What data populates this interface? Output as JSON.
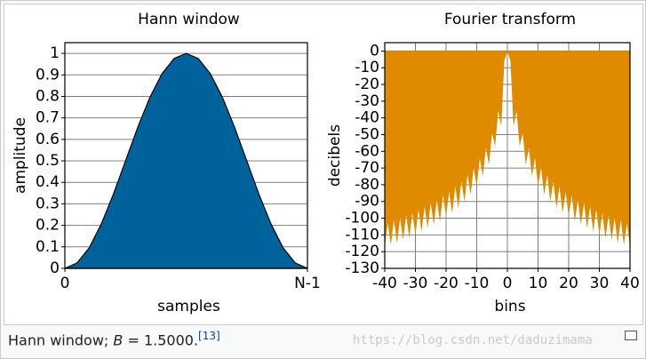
{
  "chart_data": [
    {
      "type": "area",
      "title": "Hann window",
      "x_label": "samples",
      "y_label": "amplitude",
      "x": [
        0,
        0.05,
        0.1,
        0.15,
        0.2,
        0.25,
        0.3,
        0.35,
        0.4,
        0.45,
        0.5,
        0.55,
        0.6,
        0.65,
        0.7,
        0.75,
        0.8,
        0.85,
        0.9,
        0.95,
        1
      ],
      "values": [
        0,
        0.025,
        0.095,
        0.206,
        0.345,
        0.5,
        0.655,
        0.794,
        0.905,
        0.976,
        1,
        0.976,
        0.905,
        0.794,
        0.655,
        0.5,
        0.345,
        0.206,
        0.095,
        0.025,
        0
      ],
      "color": "#00629b",
      "stroke": "#000000",
      "xlim": [
        0,
        1
      ],
      "xticks": [
        {
          "value": 0,
          "label": "0"
        },
        {
          "value": 1,
          "label": "N-1"
        }
      ],
      "ylim": [
        0,
        1.05
      ],
      "yticks": [
        0,
        0.1,
        0.2,
        0.3,
        0.4,
        0.5,
        0.6,
        0.7,
        0.8,
        0.9,
        1
      ],
      "grid": true,
      "xgrid": false
    },
    {
      "type": "area",
      "title": "Fourier transform",
      "x_label": "bins",
      "y_label": "decibels",
      "x": [
        -40,
        -39,
        -38,
        -37,
        -36,
        -35,
        -34,
        -33,
        -32,
        -31,
        -30,
        -29,
        -28,
        -27,
        -26,
        -25,
        -24,
        -23,
        -22,
        -21,
        -20,
        -19,
        -18,
        -17,
        -16,
        -15,
        -14,
        -13,
        -12,
        -11,
        -10,
        -9,
        -8,
        -7,
        -6,
        -5,
        -4,
        -3,
        -2,
        -1,
        0,
        1,
        2,
        3,
        4,
        5,
        6,
        7,
        8,
        9,
        10,
        11,
        12,
        13,
        14,
        15,
        16,
        17,
        18,
        19,
        20,
        21,
        22,
        23,
        24,
        25,
        26,
        27,
        28,
        29,
        30,
        31,
        32,
        33,
        34,
        35,
        36,
        37,
        38,
        39,
        40
      ],
      "values": [
        -117,
        -103,
        -116,
        -101,
        -115,
        -100,
        -113,
        -98,
        -112,
        -97,
        -110,
        -95,
        -108,
        -93,
        -106,
        -91,
        -104,
        -89,
        -102,
        -86,
        -99,
        -84,
        -97,
        -81,
        -94,
        -78,
        -90,
        -74,
        -86,
        -70,
        -81,
        -64,
        -75,
        -58,
        -68,
        -49,
        -57,
        -36,
        -45,
        -6,
        0,
        -6,
        -45,
        -36,
        -57,
        -49,
        -68,
        -58,
        -75,
        -64,
        -81,
        -70,
        -86,
        -74,
        -90,
        -78,
        -94,
        -81,
        -97,
        -84,
        -99,
        -86,
        -102,
        -89,
        -104,
        -91,
        -106,
        -93,
        -108,
        -95,
        -110,
        -97,
        -112,
        -98,
        -113,
        -100,
        -115,
        -101,
        -116,
        -103,
        -117
      ],
      "color": "#e08a00",
      "stroke": "none",
      "xlim": [
        -40,
        40
      ],
      "xticks": [
        -40,
        -30,
        -20,
        -10,
        0,
        10,
        20,
        30,
        40
      ],
      "ylim": [
        -130,
        5
      ],
      "yticks": [
        0,
        -10,
        -20,
        -30,
        -40,
        -50,
        -60,
        -70,
        -80,
        -90,
        -100,
        -110,
        -120,
        -130
      ],
      "grid": true,
      "xgrid": true
    }
  ],
  "caption": {
    "text": "Hann window;",
    "symbol": "B",
    "value_text": "= 1.5000.",
    "ref": "[13]"
  },
  "watermark": "https://blog.csdn.net/daduzimama"
}
